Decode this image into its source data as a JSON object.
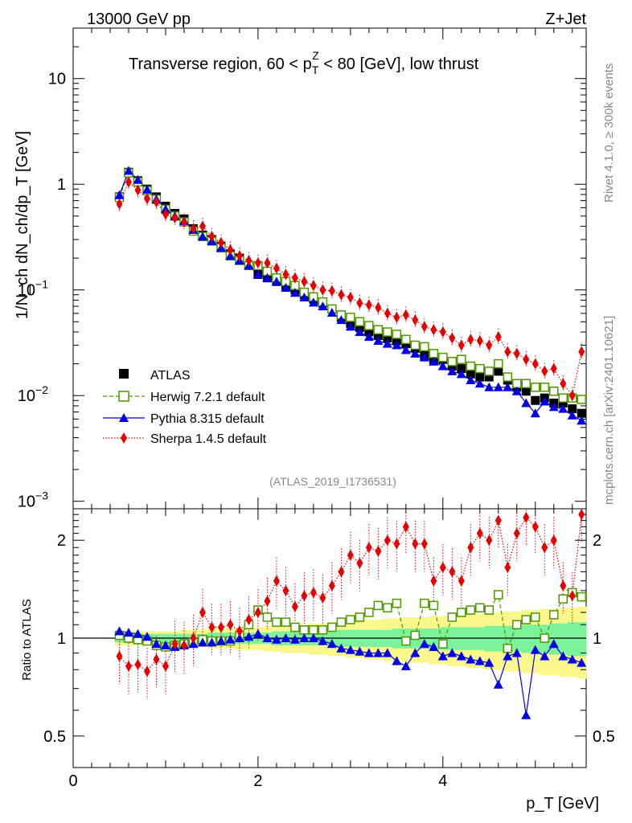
{
  "header": {
    "energy": "13000 GeV pp",
    "process": "Z+Jet",
    "title_prefix": "Transverse region, 60 < p",
    "title_sup": "Z",
    "title_sub": "T",
    "title_suffix": " < 80 [GeV], low thrust",
    "rivet": "Rivet 4.1.0, ≥ 300k events",
    "mcplots": "mcplots.cern.ch [arXiv:2401.10621]",
    "analysis_id": "(ATLAS_2019_I1736531)"
  },
  "axes": {
    "ylabel_main": "1/N_ch dN_ch/dp_T [GeV]",
    "ylabel_ratio": "Ratio to ATLAS",
    "xlabel": "p_T [GeV]",
    "main_ticks": [
      "10",
      "1",
      "10",
      "10",
      "10"
    ],
    "main_tick_exponents": [
      "",
      "",
      "−1",
      "−2",
      "−3"
    ],
    "ratio_ticks": [
      "2",
      "1",
      "0.5"
    ],
    "x_ticks": [
      "0",
      "2",
      "4"
    ]
  },
  "legend": [
    {
      "key": "atlas",
      "label": "ATLAS"
    },
    {
      "key": "herwig",
      "label": "Herwig 7.2.1 default"
    },
    {
      "key": "pythia",
      "label": "Pythia 8.315 default"
    },
    {
      "key": "sherpa",
      "label": "Sherpa 1.4.5 default"
    }
  ],
  "colors": {
    "atlas": "#000000",
    "herwig": "#4c9900",
    "pythia": "#0000e6",
    "sherpa": "#e60000",
    "band_inner": "#7cf29a",
    "band_outer": "#faf78c"
  },
  "chart_data": {
    "type": "scatter",
    "main": {
      "yscale": "log",
      "ylim": [
        0.00085,
        30
      ],
      "xlim": [
        0,
        5.55
      ],
      "x": [
        0.5,
        0.6,
        0.7,
        0.8,
        0.9,
        1.0,
        1.1,
        1.2,
        1.3,
        1.4,
        1.5,
        1.6,
        1.7,
        1.8,
        1.9,
        2.0,
        2.1,
        2.2,
        2.3,
        2.4,
        2.5,
        2.6,
        2.7,
        2.8,
        2.9,
        3.0,
        3.1,
        3.2,
        3.3,
        3.4,
        3.5,
        3.6,
        3.7,
        3.8,
        3.9,
        4.0,
        4.1,
        4.2,
        4.3,
        4.4,
        4.5,
        4.6,
        4.7,
        4.8,
        4.9,
        5.0,
        5.1,
        5.2,
        5.3,
        5.4,
        5.5
      ],
      "series": [
        {
          "name": "ATLAS",
          "values": [
            0.76,
            1.3,
            1.08,
            0.9,
            0.76,
            0.62,
            0.53,
            0.47,
            0.38,
            0.33,
            0.3,
            0.26,
            0.22,
            0.2,
            0.17,
            0.14,
            0.13,
            0.12,
            0.11,
            0.1,
            0.09,
            0.082,
            0.075,
            0.066,
            0.055,
            0.048,
            0.044,
            0.04,
            0.037,
            0.035,
            0.033,
            0.031,
            0.028,
            0.024,
            0.022,
            0.022,
            0.019,
            0.018,
            0.016,
            0.015,
            0.015,
            0.017,
            0.014,
            0.012,
            0.011,
            0.009,
            0.0095,
            0.0085,
            0.0085,
            0.0075,
            0.0068
          ]
        },
        {
          "name": "Herwig 7.2.1 default",
          "values": [
            0.75,
            1.28,
            1.05,
            0.87,
            0.72,
            0.58,
            0.5,
            0.44,
            0.36,
            0.32,
            0.29,
            0.25,
            0.21,
            0.19,
            0.17,
            0.17,
            0.15,
            0.13,
            0.12,
            0.11,
            0.095,
            0.086,
            0.077,
            0.066,
            0.058,
            0.055,
            0.05,
            0.046,
            0.042,
            0.04,
            0.038,
            0.034,
            0.03,
            0.029,
            0.025,
            0.023,
            0.021,
            0.022,
            0.019,
            0.018,
            0.017,
            0.02,
            0.015,
            0.013,
            0.013,
            0.012,
            0.012,
            0.011,
            0.0095,
            0.0095,
            0.0092
          ]
        },
        {
          "name": "Pythia 8.315 default",
          "values": [
            0.79,
            1.34,
            1.1,
            0.89,
            0.72,
            0.58,
            0.5,
            0.45,
            0.37,
            0.32,
            0.29,
            0.25,
            0.21,
            0.19,
            0.17,
            0.14,
            0.13,
            0.12,
            0.105,
            0.094,
            0.085,
            0.076,
            0.07,
            0.061,
            0.052,
            0.045,
            0.04,
            0.036,
            0.033,
            0.031,
            0.03,
            0.027,
            0.025,
            0.023,
            0.021,
            0.019,
            0.017,
            0.016,
            0.014,
            0.013,
            0.012,
            0.012,
            0.012,
            0.011,
            0.0085,
            0.0068,
            0.0088,
            0.0078,
            0.0075,
            0.0065,
            0.0058
          ]
        },
        {
          "name": "Sherpa 1.4.5 default",
          "values": [
            0.65,
            1.05,
            0.88,
            0.73,
            0.68,
            0.52,
            0.48,
            0.44,
            0.38,
            0.4,
            0.32,
            0.28,
            0.24,
            0.21,
            0.19,
            0.18,
            0.18,
            0.16,
            0.14,
            0.13,
            0.12,
            0.11,
            0.1,
            0.098,
            0.09,
            0.085,
            0.075,
            0.072,
            0.068,
            0.06,
            0.055,
            0.058,
            0.052,
            0.045,
            0.042,
            0.04,
            0.035,
            0.03,
            0.034,
            0.033,
            0.03,
            0.036,
            0.026,
            0.025,
            0.022,
            0.02,
            0.017,
            0.018,
            0.013,
            0.01,
            0.026
          ]
        }
      ]
    },
    "ratio": {
      "yscale": "log",
      "ylim": [
        0.4,
        2.5
      ],
      "series": [
        {
          "name": "Herwig 7.2.1 default",
          "values": [
            1.02,
            1.0,
            0.99,
            0.98,
            0.95,
            0.94,
            0.95,
            0.96,
            0.97,
            0.99,
            0.98,
            0.98,
            0.98,
            1.02,
            1.1,
            1.22,
            1.16,
            1.12,
            1.12,
            1.08,
            1.06,
            1.06,
            1.06,
            1.08,
            1.12,
            1.14,
            1.16,
            1.2,
            1.26,
            1.24,
            1.28,
            0.98,
            1.02,
            1.28,
            1.26,
            0.96,
            1.16,
            1.2,
            1.22,
            1.24,
            1.22,
            1.36,
            0.93,
            1.1,
            1.14,
            1.16,
            1.0,
            1.18,
            1.32,
            1.38,
            1.34
          ]
        },
        {
          "name": "Pythia 8.315 default",
          "values": [
            1.05,
            1.04,
            1.03,
            1.01,
            0.96,
            0.95,
            0.94,
            0.95,
            0.96,
            0.97,
            0.97,
            0.98,
            0.99,
            1.0,
            1.01,
            1.03,
            1.0,
            0.99,
            1.0,
            0.99,
            1.0,
            1.0,
            0.98,
            0.96,
            0.93,
            0.92,
            0.91,
            0.9,
            0.9,
            0.9,
            0.85,
            0.82,
            0.9,
            0.96,
            0.94,
            0.88,
            0.9,
            0.88,
            0.86,
            0.85,
            0.84,
            0.72,
            0.88,
            0.9,
            0.58,
            0.92,
            0.88,
            0.96,
            0.88,
            0.86,
            0.84
          ]
        },
        {
          "name": "Sherpa 1.4.5 default",
          "values": [
            0.88,
            0.82,
            0.83,
            0.79,
            0.86,
            0.82,
            0.96,
            0.95,
            1.0,
            1.2,
            1.08,
            1.08,
            1.1,
            1.05,
            1.14,
            1.2,
            1.3,
            1.5,
            1.4,
            1.25,
            1.35,
            1.38,
            1.33,
            1.45,
            1.6,
            1.8,
            1.7,
            1.9,
            1.85,
            2.0,
            1.95,
            2.2,
            1.95,
            1.95,
            1.5,
            1.65,
            1.6,
            1.5,
            1.9,
            2.1,
            2.0,
            2.3,
            1.65,
            2.1,
            2.35,
            2.2,
            1.9,
            2.0,
            1.45,
            1.35,
            2.4
          ]
        }
      ],
      "band_inner": [
        0.03,
        0.03,
        0.03,
        0.03,
        0.03,
        0.03,
        0.03,
        0.03,
        0.03,
        0.03,
        0.04,
        0.04,
        0.04,
        0.04,
        0.04,
        0.04,
        0.04,
        0.05,
        0.05,
        0.05,
        0.05,
        0.05,
        0.05,
        0.05,
        0.06,
        0.06,
        0.06,
        0.06,
        0.06,
        0.06,
        0.07,
        0.07,
        0.07,
        0.07,
        0.07,
        0.08,
        0.08,
        0.08,
        0.08,
        0.08,
        0.09,
        0.09,
        0.09,
        0.09,
        0.1,
        0.1,
        0.1,
        0.11,
        0.11,
        0.12,
        0.12
      ],
      "band_outer": [
        0.05,
        0.05,
        0.05,
        0.05,
        0.05,
        0.05,
        0.05,
        0.06,
        0.06,
        0.06,
        0.07,
        0.07,
        0.07,
        0.08,
        0.08,
        0.08,
        0.09,
        0.09,
        0.1,
        0.1,
        0.1,
        0.11,
        0.11,
        0.12,
        0.12,
        0.13,
        0.13,
        0.14,
        0.14,
        0.15,
        0.15,
        0.16,
        0.16,
        0.16,
        0.17,
        0.17,
        0.18,
        0.18,
        0.19,
        0.19,
        0.2,
        0.2,
        0.21,
        0.21,
        0.22,
        0.22,
        0.23,
        0.23,
        0.24,
        0.24,
        0.25
      ]
    }
  }
}
